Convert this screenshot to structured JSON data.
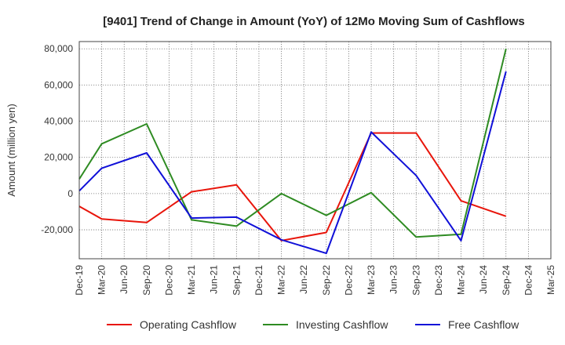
{
  "chart_data": {
    "type": "line",
    "title": "[9401]  Trend of Change in Amount (YoY) of 12Mo Moving Sum of Cashflows",
    "xlabel": "",
    "ylabel": "Amount (million yen)",
    "ylim": [
      -36000,
      84000
    ],
    "yticks": [
      80000,
      60000,
      40000,
      20000,
      0,
      -20000
    ],
    "ytick_labels": [
      "80,000",
      "60,000",
      "40,000",
      "20,000",
      "0",
      "-20,000"
    ],
    "categories": [
      "Dec-19",
      "Mar-20",
      "Jun-20",
      "Sep-20",
      "Dec-20",
      "Mar-21",
      "Jun-21",
      "Sep-21",
      "Dec-21",
      "Mar-22",
      "Jun-22",
      "Sep-22",
      "Dec-22",
      "Mar-23",
      "Jun-23",
      "Sep-23",
      "Dec-23",
      "Mar-24",
      "Jun-24",
      "Sep-24",
      "Dec-24",
      "Mar-25"
    ],
    "grid": true,
    "legend_position": "bottom",
    "series": [
      {
        "name": "Operating Cashflow",
        "color": "#e8150b",
        "values": [
          -7000,
          -14000,
          null,
          -16000,
          null,
          1000,
          null,
          4800,
          null,
          -26000,
          null,
          -21500,
          null,
          33500,
          null,
          33500,
          null,
          -4000,
          null,
          -12500,
          null,
          null
        ]
      },
      {
        "name": "Investing Cashflow",
        "color": "#2e8b22",
        "values": [
          8000,
          27500,
          null,
          38500,
          null,
          -14500,
          null,
          -18000,
          null,
          0,
          null,
          -12000,
          null,
          500,
          null,
          -24000,
          null,
          -22500,
          null,
          80000,
          null,
          null
        ]
      },
      {
        "name": "Free Cashflow",
        "color": "#1010d8",
        "values": [
          1500,
          14000,
          null,
          22500,
          null,
          -13500,
          null,
          -13000,
          null,
          -25500,
          null,
          -33000,
          null,
          34000,
          null,
          10000,
          null,
          -26000,
          null,
          67500,
          null,
          null
        ]
      }
    ]
  }
}
